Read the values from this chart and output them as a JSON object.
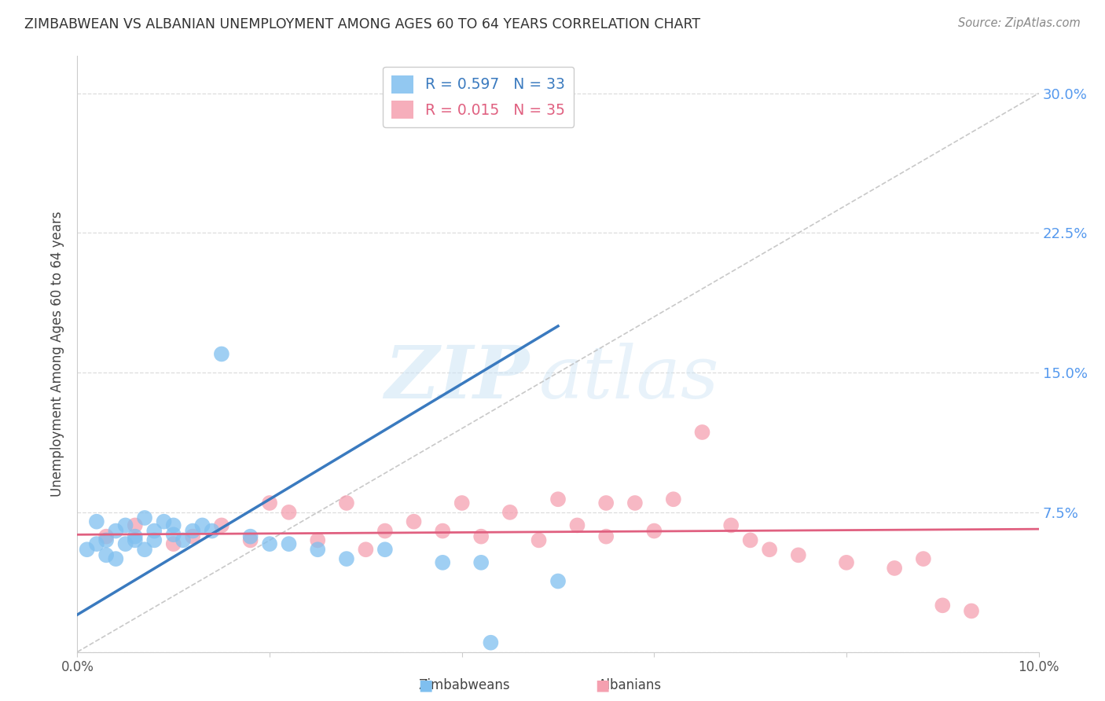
{
  "title": "ZIMBABWEAN VS ALBANIAN UNEMPLOYMENT AMONG AGES 60 TO 64 YEARS CORRELATION CHART",
  "source": "Source: ZipAtlas.com",
  "ylabel": "Unemployment Among Ages 60 to 64 years",
  "xlim": [
    0.0,
    0.1
  ],
  "ylim": [
    0.0,
    0.32
  ],
  "yticks": [
    0.0,
    0.075,
    0.15,
    0.225,
    0.3
  ],
  "xticks": [
    0.0,
    0.02,
    0.04,
    0.06,
    0.08,
    0.1
  ],
  "xtick_labels": [
    "0.0%",
    "",
    "",
    "",
    "",
    "10.0%"
  ],
  "zim_color": "#7fbfef",
  "alb_color": "#f5a0b0",
  "zim_line_color": "#3a7abf",
  "alb_line_color": "#e06080",
  "ref_line_color": "#bbbbbb",
  "zim_R": "0.597",
  "zim_N": "33",
  "alb_R": "0.015",
  "alb_N": "35",
  "watermark_zip": "ZIP",
  "watermark_atlas": "atlas",
  "background_color": "#ffffff",
  "grid_color": "#dddddd",
  "zim_line_x0": 0.0,
  "zim_line_y0": 0.02,
  "zim_line_x1": 0.05,
  "zim_line_y1": 0.175,
  "alb_line_x0": 0.0,
  "alb_line_y0": 0.063,
  "alb_line_x1": 0.1,
  "alb_line_y1": 0.066,
  "zimbabweans_x": [
    0.001,
    0.002,
    0.002,
    0.003,
    0.003,
    0.004,
    0.004,
    0.005,
    0.005,
    0.006,
    0.006,
    0.007,
    0.007,
    0.008,
    0.008,
    0.009,
    0.01,
    0.01,
    0.011,
    0.012,
    0.013,
    0.014,
    0.015,
    0.018,
    0.02,
    0.022,
    0.025,
    0.028,
    0.032,
    0.038,
    0.042,
    0.05,
    0.043
  ],
  "zimbabweans_y": [
    0.055,
    0.07,
    0.058,
    0.06,
    0.052,
    0.065,
    0.05,
    0.068,
    0.058,
    0.062,
    0.06,
    0.072,
    0.055,
    0.06,
    0.065,
    0.07,
    0.068,
    0.063,
    0.06,
    0.065,
    0.068,
    0.065,
    0.16,
    0.062,
    0.058,
    0.058,
    0.055,
    0.05,
    0.055,
    0.048,
    0.048,
    0.038,
    0.005
  ],
  "albanians_x": [
    0.003,
    0.006,
    0.01,
    0.012,
    0.015,
    0.018,
    0.02,
    0.022,
    0.025,
    0.028,
    0.03,
    0.032,
    0.035,
    0.038,
    0.04,
    0.042,
    0.045,
    0.048,
    0.05,
    0.052,
    0.055,
    0.055,
    0.058,
    0.06,
    0.062,
    0.065,
    0.068,
    0.07,
    0.072,
    0.075,
    0.08,
    0.085,
    0.088,
    0.09,
    0.093
  ],
  "albanians_y": [
    0.062,
    0.068,
    0.058,
    0.062,
    0.068,
    0.06,
    0.08,
    0.075,
    0.06,
    0.08,
    0.055,
    0.065,
    0.07,
    0.065,
    0.08,
    0.062,
    0.075,
    0.06,
    0.082,
    0.068,
    0.08,
    0.062,
    0.08,
    0.065,
    0.082,
    0.118,
    0.068,
    0.06,
    0.055,
    0.052,
    0.048,
    0.045,
    0.05,
    0.025,
    0.022
  ]
}
